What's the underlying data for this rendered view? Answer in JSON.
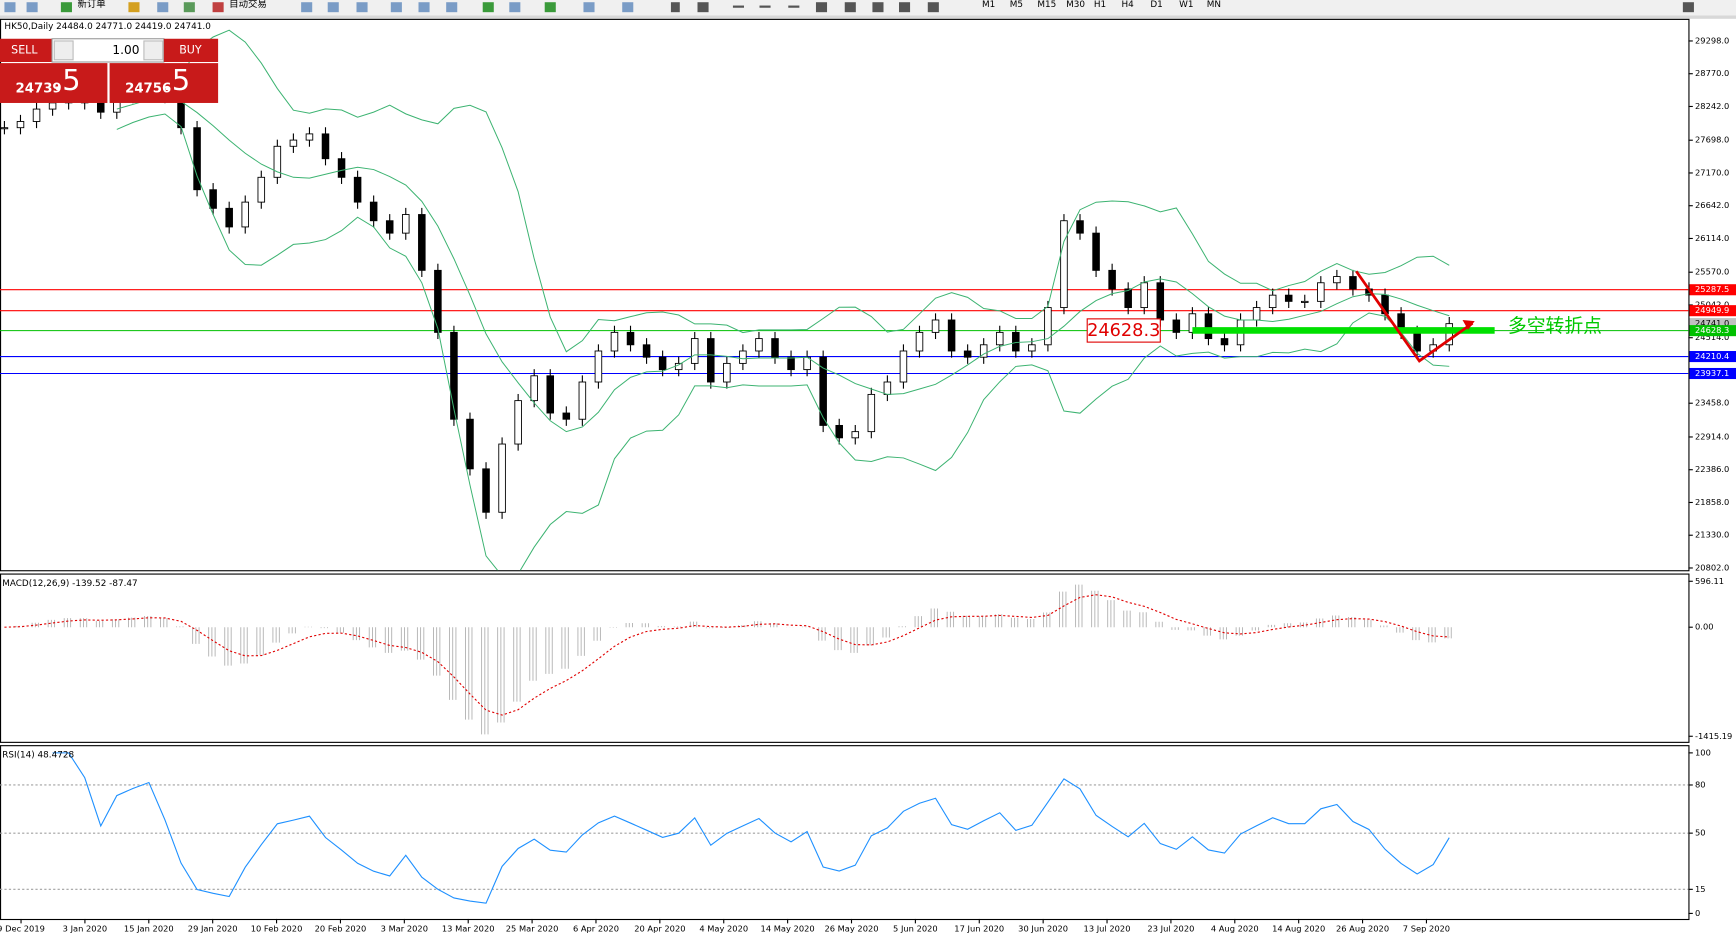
{
  "toolbar": {
    "new_order": "新订单",
    "auto_trading": "自动交易",
    "timeframes": [
      "M1",
      "M5",
      "M15",
      "M30",
      "H1",
      "H4",
      "D1",
      "W1",
      "MN"
    ]
  },
  "trade_panel": {
    "sell": "SELL",
    "buy": "BUY",
    "lot": "1.00",
    "bid_main": "24739",
    "bid_frac": ".5",
    "ask_main": "24756",
    "ask_frac": ".5"
  },
  "chart": {
    "symbol_info": "HK50,Daily  24484.0 24771.0 24419.0 24741.0",
    "price_ticks": [
      {
        "value": 29298,
        "label": "29298.0"
      },
      {
        "value": 28770,
        "label": "28770.0"
      },
      {
        "value": 28242,
        "label": "28242.0"
      },
      {
        "value": 27698,
        "label": "27698.0"
      },
      {
        "value": 27170,
        "label": "27170.0"
      },
      {
        "value": 26642,
        "label": "26642.0"
      },
      {
        "value": 26114,
        "label": "26114.0"
      },
      {
        "value": 25570,
        "label": "25570.0"
      },
      {
        "value": 25042,
        "label": "25042.0"
      },
      {
        "value": 24514,
        "label": "24514.0"
      },
      {
        "value": 23458,
        "label": "23458.0"
      },
      {
        "value": 22914,
        "label": "22914.0"
      },
      {
        "value": 22386,
        "label": "22386.0"
      },
      {
        "value": 21858,
        "label": "21858.0"
      },
      {
        "value": 21330,
        "label": "21330.0"
      },
      {
        "value": 20802,
        "label": "20802.0"
      }
    ],
    "current_price": {
      "value": 24741,
      "label": "24741.0"
    },
    "hlines": [
      {
        "value": 25287.5,
        "color": "#ff0000"
      },
      {
        "value": 24949.9,
        "color": "#ff0000"
      },
      {
        "value": 24628.3,
        "color": "#00c000"
      },
      {
        "value": 24210.4,
        "color": "#0000ff"
      },
      {
        "value": 23937.1,
        "color": "#0000ff"
      }
    ],
    "annotation": {
      "price_label": "24628.3",
      "text": "多空转折点"
    },
    "dates": [
      "9 Dec 2019",
      "3 Jan 2020",
      "15 Jan 2020",
      "29 Jan 2020",
      "10 Feb 2020",
      "20 Feb 2020",
      "3 Mar 2020",
      "13 Mar 2020",
      "25 Mar 2020",
      "6 Apr 2020",
      "20 Apr 2020",
      "4 May 2020",
      "14 May 2020",
      "26 May 2020",
      "5 Jun 2020",
      "17 Jun 2020",
      "30 Jun 2020",
      "13 Jul 2020",
      "23 Jul 2020",
      "4 Aug 2020",
      "14 Aug 2020",
      "26 Aug 2020",
      "7 Sep 2020"
    ],
    "closes": [
      27900,
      28000,
      28200,
      28300,
      28350,
      28300,
      28150,
      28400,
      28500,
      28600,
      28400,
      27900,
      26900,
      26600,
      26300,
      26700,
      27100,
      27600,
      27700,
      27800,
      27400,
      27100,
      26700,
      26400,
      26200,
      26500,
      25600,
      24600,
      23200,
      22400,
      21700,
      22800,
      23500,
      23900,
      23300,
      23200,
      23800,
      24300,
      24600,
      24400,
      24200,
      24000,
      24100,
      24500,
      23800,
      24100,
      24300,
      24500,
      24200,
      24000,
      24200,
      23100,
      22900,
      23000,
      23600,
      23800,
      24300,
      24600,
      24800,
      24300,
      24200,
      24400,
      24600,
      24300,
      24400,
      25000,
      26400,
      26200,
      25600,
      25300,
      25000,
      25400,
      24800,
      24600,
      24900,
      24500,
      24400,
      24800,
      25000,
      25200,
      25100,
      25100,
      25400,
      25500,
      25300,
      25200,
      24900,
      24600,
      24300,
      24400,
      24741
    ],
    "macd": {
      "label": "MACD(12,26,9) -139.52 -87.47",
      "ticks": [
        {
          "value": 596.11,
          "label": "596.11"
        },
        {
          "value": 0,
          "label": "0.00"
        },
        {
          "value": -1415.19,
          "label": "-1415.19"
        }
      ]
    },
    "rsi": {
      "label": "RSI(14) 48.4728",
      "ticks": [
        100,
        80,
        50,
        15,
        0
      ],
      "levels": [
        80,
        50,
        15
      ]
    }
  }
}
